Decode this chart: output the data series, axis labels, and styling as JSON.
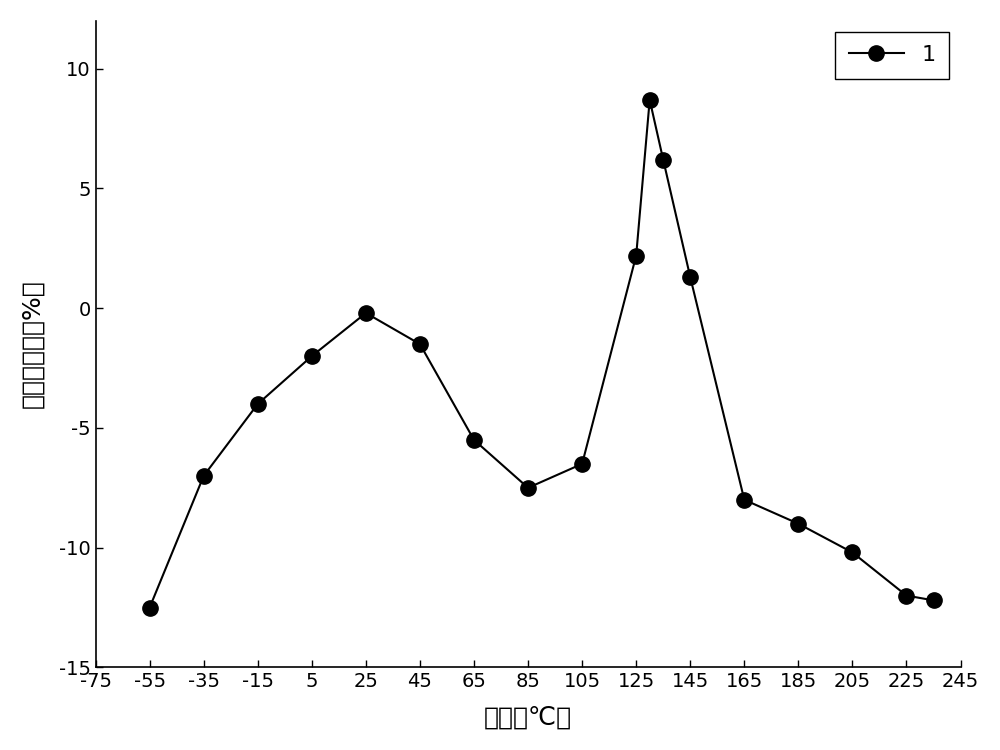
{
  "x": [
    -55,
    -35,
    -15,
    5,
    25,
    45,
    65,
    85,
    105,
    125,
    130,
    135,
    145,
    165,
    185,
    205,
    225,
    235
  ],
  "y": [
    -12.5,
    -7.0,
    -4.0,
    -2.0,
    -0.2,
    -1.5,
    -5.5,
    -7.5,
    -6.5,
    2.2,
    8.7,
    6.2,
    1.3,
    -8.0,
    -9.0,
    -10.2,
    -12.0,
    -12.2
  ],
  "xlabel": "温度（℃）",
  "ylabel": "温度变化率（%）",
  "legend_label": "1",
  "xlim": [
    -75,
    245
  ],
  "ylim": [
    -15,
    12
  ],
  "xticks": [
    -75,
    -55,
    -35,
    -15,
    5,
    25,
    45,
    65,
    85,
    105,
    125,
    145,
    165,
    185,
    205,
    225,
    245
  ],
  "yticks": [
    -15,
    -10,
    -5,
    0,
    5,
    10
  ],
  "line_color": "#000000",
  "marker_color": "#000000",
  "marker_size": 11,
  "line_width": 1.5,
  "background_color": "#ffffff",
  "axis_fontsize": 18,
  "tick_fontsize": 14,
  "legend_fontsize": 16
}
